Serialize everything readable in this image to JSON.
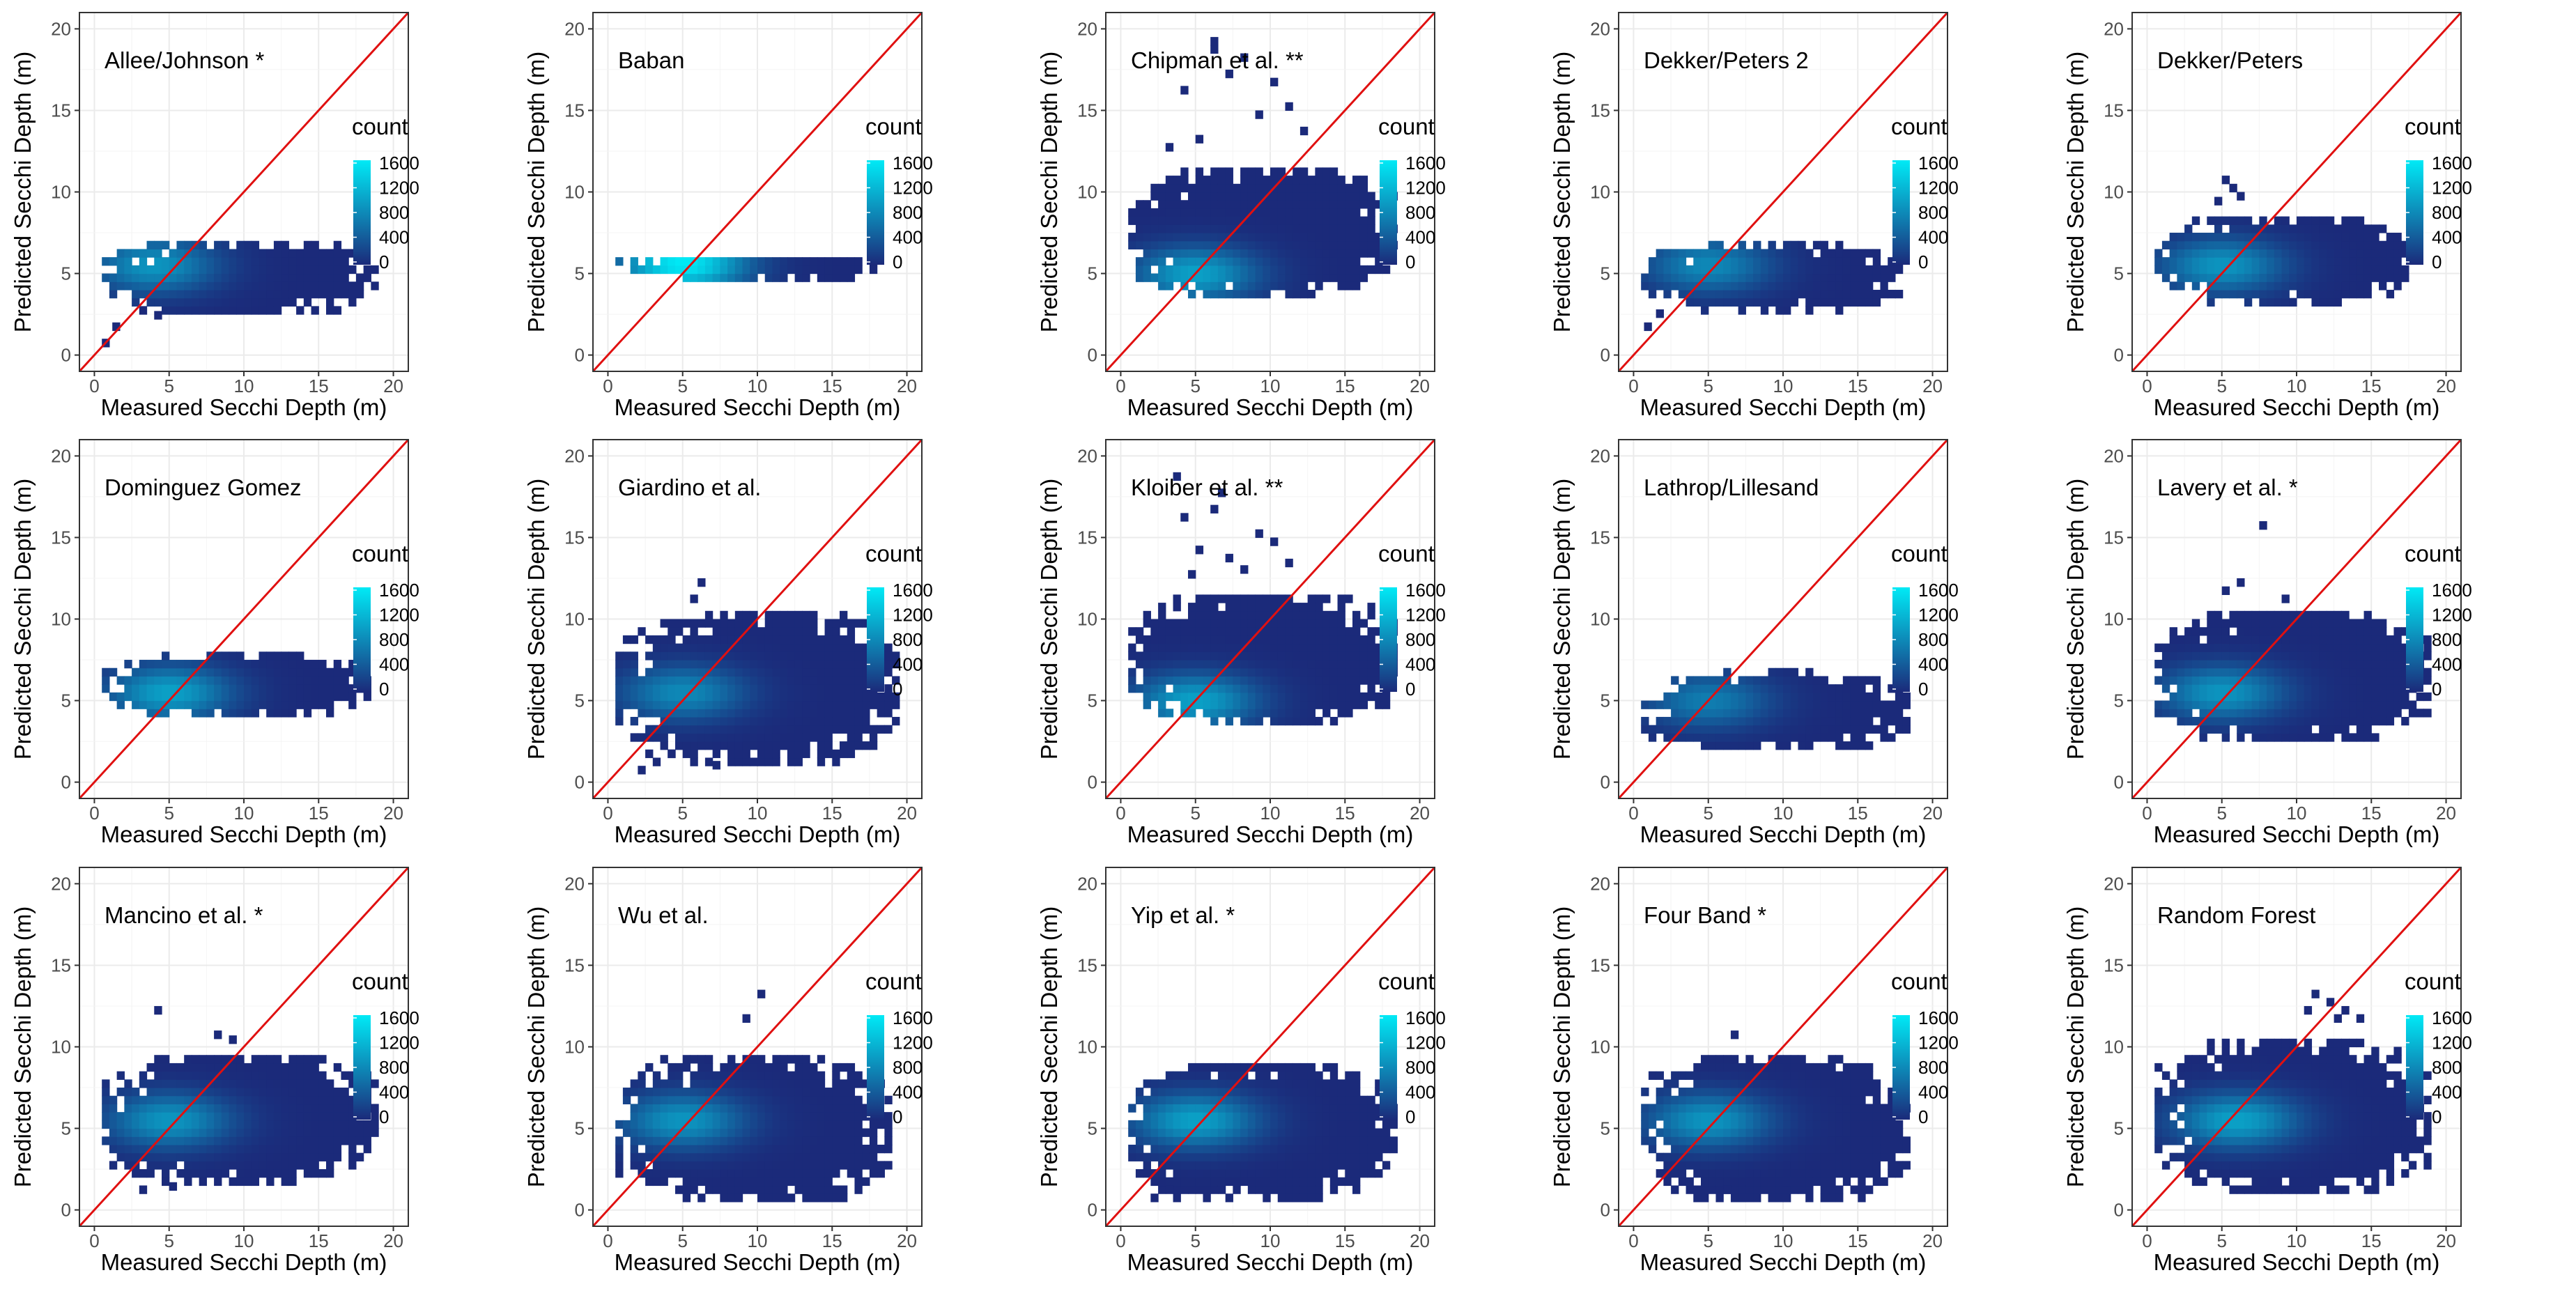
{
  "figure_title": "",
  "colors": {
    "low": "#1b2a7a",
    "high": "#00eaf6",
    "diagonal": "#e01010",
    "grid": "#ebebeb",
    "axis_text": "#4d4d4d",
    "panel_border": "#333333"
  },
  "shared_axes": {
    "xlabel": "Measured Secchi Depth (m)",
    "ylabel": "Predicted Secchi Depth (m)",
    "xlim": [
      -1,
      21
    ],
    "ylim": [
      -1,
      21
    ],
    "xticks": [
      0,
      5,
      10,
      15,
      20
    ],
    "yticks": [
      0,
      5,
      10,
      15,
      20
    ],
    "tick_labels": [
      "0",
      "5",
      "10",
      "15",
      "20"
    ]
  },
  "legend": {
    "title": "count",
    "labels": [
      "1600",
      "1200",
      "800",
      "400",
      "0"
    ],
    "values": [
      1600,
      1200,
      800,
      400,
      0
    ]
  },
  "chart_data": [
    {
      "type": "heatmap",
      "title": "Allee/Johnson *",
      "xlabel": "Measured Secchi Depth (m)",
      "ylabel": "Predicted Secchi Depth (m)",
      "xlim": [
        -1,
        21
      ],
      "ylim": [
        -1,
        21
      ],
      "reference_line": "y = x",
      "x_range": [
        0.5,
        19
      ],
      "y_range": [
        2.5,
        7
      ],
      "peak": [
        4,
        5.5
      ],
      "peak_count": 900,
      "outlier_x": [
        0.5,
        1.2,
        4,
        3
      ],
      "outlier_y": [
        0.5,
        1.5,
        2.2,
        2.5
      ]
    },
    {
      "type": "heatmap",
      "title": "Baban",
      "xlabel": "Measured Secchi Depth (m)",
      "ylabel": "Predicted Secchi Depth (m)",
      "xlim": [
        -1,
        21
      ],
      "ylim": [
        -1,
        21
      ],
      "reference_line": "y = x",
      "x_range": [
        0.5,
        18.5
      ],
      "y_range": [
        4.6,
        6.1
      ],
      "peak": [
        5,
        5.6
      ],
      "peak_count": 1600,
      "outlier_x": [],
      "outlier_y": []
    },
    {
      "type": "heatmap",
      "title": "Chipman et al. **",
      "xlabel": "Measured Secchi Depth (m)",
      "ylabel": "Predicted Secchi Depth (m)",
      "xlim": [
        -1,
        21
      ],
      "ylim": [
        -1,
        21
      ],
      "reference_line": "y = x",
      "x_range": [
        0.5,
        18.5
      ],
      "y_range": [
        3.5,
        11.5
      ],
      "peak": [
        5,
        5
      ],
      "peak_count": 1000,
      "outlier_x": [
        4,
        6,
        8,
        9,
        5,
        7,
        11,
        3,
        10,
        12,
        6
      ],
      "outlier_y": [
        16,
        19,
        18,
        14.5,
        13,
        17,
        15,
        12.5,
        16.5,
        13.5,
        18.5
      ]
    },
    {
      "type": "heatmap",
      "title": "Dekker/Peters 2",
      "xlabel": "Measured Secchi Depth (m)",
      "ylabel": "Predicted Secchi Depth (m)",
      "xlim": [
        -1,
        21
      ],
      "ylim": [
        -1,
        21
      ],
      "reference_line": "y = x",
      "x_range": [
        0.5,
        18
      ],
      "y_range": [
        2.8,
        6.7
      ],
      "peak": [
        5,
        5.5
      ],
      "peak_count": 800,
      "outlier_x": [
        0.7,
        1.5
      ],
      "outlier_y": [
        1.5,
        2.3
      ]
    },
    {
      "type": "heatmap",
      "title": "Dekker/Peters",
      "xlabel": "Measured Secchi Depth (m)",
      "ylabel": "Predicted Secchi Depth (m)",
      "xlim": [
        -1,
        21
      ],
      "ylim": [
        -1,
        21
      ],
      "reference_line": "y = x",
      "x_range": [
        0.5,
        18
      ],
      "y_range": [
        3.2,
        8.5
      ],
      "peak": [
        5,
        5.5
      ],
      "peak_count": 900,
      "outlier_x": [
        5,
        5.5,
        6,
        4.5
      ],
      "outlier_y": [
        10.5,
        10,
        9.5,
        9.2
      ]
    },
    {
      "type": "heatmap",
      "title": "Dominguez Gomez",
      "xlabel": "Measured Secchi Depth (m)",
      "ylabel": "Predicted Secchi Depth (m)",
      "xlim": [
        -1,
        21
      ],
      "ylim": [
        -1,
        21
      ],
      "reference_line": "y = x",
      "x_range": [
        0.5,
        18.5
      ],
      "y_range": [
        4,
        7.8
      ],
      "peak": [
        5,
        5.5
      ],
      "peak_count": 1000,
      "outlier_x": [],
      "outlier_y": []
    },
    {
      "type": "heatmap",
      "title": "Giardino et al.",
      "xlabel": "Measured Secchi Depth (m)",
      "ylabel": "Predicted Secchi Depth (m)",
      "xlim": [
        -1,
        21
      ],
      "ylim": [
        -1,
        21
      ],
      "reference_line": "y = x",
      "x_range": [
        0.5,
        19.5
      ],
      "y_range": [
        1,
        10.5
      ],
      "peak": [
        5,
        5.5
      ],
      "peak_count": 800,
      "outlier_x": [
        6,
        5.5,
        3,
        7,
        2,
        4
      ],
      "outlier_y": [
        12,
        11,
        1,
        0.8,
        0.5,
        1.5
      ]
    },
    {
      "type": "heatmap",
      "title": "Kloiber et al. **",
      "xlabel": "Measured Secchi Depth (m)",
      "ylabel": "Predicted Secchi Depth (m)",
      "xlim": [
        -1,
        21
      ],
      "ylim": [
        -1,
        21
      ],
      "reference_line": "y = x",
      "x_range": [
        0.5,
        18.5
      ],
      "y_range": [
        3.5,
        11.5
      ],
      "peak": [
        5,
        5
      ],
      "peak_count": 1000,
      "outlier_x": [
        3.5,
        4,
        5,
        6,
        7,
        9,
        10,
        4.5,
        6.5,
        8,
        11
      ],
      "outlier_y": [
        18.5,
        16,
        14,
        16.5,
        13.5,
        15,
        14.5,
        12.5,
        17.5,
        12.8,
        13.2
      ]
    },
    {
      "type": "heatmap",
      "title": "Lathrop/Lillesand",
      "xlabel": "Measured Secchi Depth (m)",
      "ylabel": "Predicted Secchi Depth (m)",
      "xlim": [
        -1,
        21
      ],
      "ylim": [
        -1,
        21
      ],
      "reference_line": "y = x",
      "x_range": [
        0.5,
        18.5
      ],
      "y_range": [
        2,
        6.7
      ],
      "peak": [
        5,
        5
      ],
      "peak_count": 700,
      "outlier_x": [],
      "outlier_y": []
    },
    {
      "type": "heatmap",
      "title": "Lavery et al. *",
      "xlabel": "Measured Secchi Depth (m)",
      "ylabel": "Predicted Secchi Depth (m)",
      "xlim": [
        -1,
        21
      ],
      "ylim": [
        -1,
        21
      ],
      "reference_line": "y = x",
      "x_range": [
        0.5,
        19
      ],
      "y_range": [
        2.5,
        10.5
      ],
      "peak": [
        5,
        5.5
      ],
      "peak_count": 900,
      "outlier_x": [
        7.5,
        5,
        6,
        9
      ],
      "outlier_y": [
        15.5,
        11.5,
        12,
        11
      ]
    },
    {
      "type": "heatmap",
      "title": "Mancino et al. *",
      "xlabel": "Measured Secchi Depth (m)",
      "ylabel": "Predicted Secchi Depth (m)",
      "xlim": [
        -1,
        21
      ],
      "ylim": [
        -1,
        21
      ],
      "reference_line": "y = x",
      "x_range": [
        0.5,
        19
      ],
      "y_range": [
        1.5,
        9.5
      ],
      "peak": [
        5,
        5.5
      ],
      "peak_count": 900,
      "outlier_x": [
        4,
        8,
        9,
        3,
        5
      ],
      "outlier_y": [
        12,
        10.5,
        10.2,
        1,
        1.2
      ]
    },
    {
      "type": "heatmap",
      "title": "Wu et al.",
      "xlabel": "Measured Secchi Depth (m)",
      "ylabel": "Predicted Secchi Depth (m)",
      "xlim": [
        -1,
        21
      ],
      "ylim": [
        -1,
        21
      ],
      "reference_line": "y = x",
      "x_range": [
        0.5,
        19
      ],
      "y_range": [
        0.5,
        9.5
      ],
      "peak": [
        5,
        5.5
      ],
      "peak_count": 900,
      "outlier_x": [
        10,
        9
      ],
      "outlier_y": [
        13,
        11.5
      ]
    },
    {
      "type": "heatmap",
      "title": "Yip et al. *",
      "xlabel": "Measured Secchi Depth (m)",
      "ylabel": "Predicted Secchi Depth (m)",
      "xlim": [
        -1,
        21
      ],
      "ylim": [
        -1,
        21
      ],
      "reference_line": "y = x",
      "x_range": [
        0.5,
        18.5
      ],
      "y_range": [
        0.5,
        9
      ],
      "peak": [
        5,
        5.5
      ],
      "peak_count": 1000,
      "outlier_x": [
        2,
        3,
        2.5
      ],
      "outlier_y": [
        0.5,
        1,
        1.5
      ]
    },
    {
      "type": "heatmap",
      "title": "Four Band *",
      "xlabel": "Measured Secchi Depth (m)",
      "ylabel": "Predicted Secchi Depth (m)",
      "xlim": [
        -1,
        21
      ],
      "ylim": [
        -1,
        21
      ],
      "reference_line": "y = x",
      "x_range": [
        0.5,
        18.5
      ],
      "y_range": [
        0.5,
        9.5
      ],
      "peak": [
        5,
        5.5
      ],
      "peak_count": 900,
      "outlier_x": [
        6,
        7,
        10,
        6.5
      ],
      "outlier_y": [
        1,
        0.5,
        1.5,
        10.5
      ]
    },
    {
      "type": "heatmap",
      "title": "Random Forest",
      "xlabel": "Measured Secchi Depth (m)",
      "ylabel": "Predicted Secchi Depth (m)",
      "xlim": [
        -1,
        21
      ],
      "ylim": [
        -1,
        21
      ],
      "reference_line": "y = x",
      "x_range": [
        0.5,
        19
      ],
      "y_range": [
        1,
        10.5
      ],
      "peak": [
        6,
        5.5
      ],
      "peak_count": 1000,
      "outlier_x": [
        11,
        12,
        10.5,
        13,
        12.5,
        14
      ],
      "outlier_y": [
        13,
        12.5,
        12,
        12,
        11.5,
        11.5
      ]
    }
  ]
}
